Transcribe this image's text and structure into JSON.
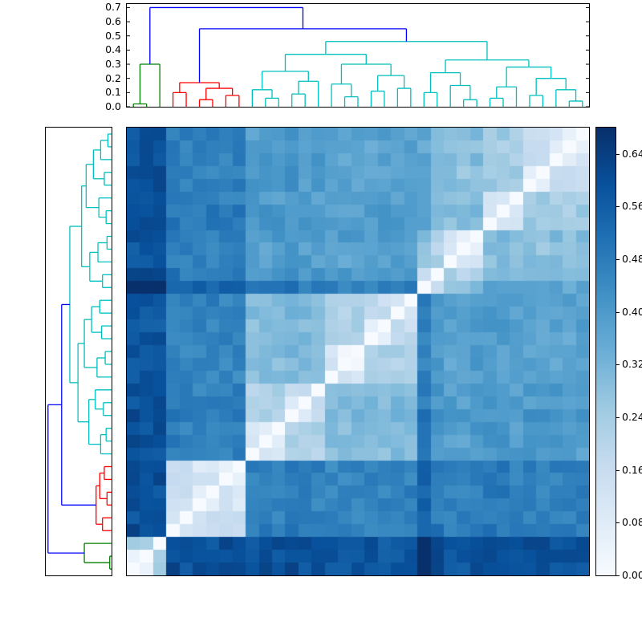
{
  "figure": {
    "background": "#ffffff",
    "description": "Hierarchically clustered pairwise distance matrix (clustermap) with column dendrogram on top, row dendrogram on the left, and a Blues colorbar on the right"
  },
  "chart_data": {
    "type": "heatmap",
    "title": "",
    "n_leaves": 35,
    "legend": "none",
    "grid": false,
    "row_order": "reversed-relative-to-columns (white zero diagonal runs bottom-left to top-right)",
    "dendrogram_axis": {
      "ylim": [
        0,
        0.725
      ],
      "tick_values": [
        0.0,
        0.1,
        0.2,
        0.3,
        0.4,
        0.5,
        0.6,
        0.7
      ],
      "tick_labels": [
        "0.0",
        "0.1",
        "0.2",
        "0.3",
        "0.4",
        "0.5",
        "0.6",
        "0.7"
      ]
    },
    "link_colors": {
      "b": "#0000ff",
      "c": "#00bfbf",
      "g": "#008000",
      "r": "#ff0000"
    },
    "tree": [
      0.7,
      "b",
      [
        0.3,
        "g",
        [
          0.02,
          "g",
          0,
          1
        ],
        2
      ],
      [
        0.55,
        "b",
        [
          0.17,
          "r",
          [
            0.1,
            "r",
            3,
            4
          ],
          [
            0.13,
            "r",
            [
              0.05,
              "r",
              5,
              6
            ],
            [
              0.08,
              "r",
              7,
              8
            ]
          ]
        ],
        [
          0.46,
          "c",
          [
            0.37,
            "c",
            [
              0.25,
              "c",
              [
                0.12,
                "c",
                9,
                [
                  0.06,
                  "c",
                  10,
                  11
                ]
              ],
              [
                0.18,
                "c",
                [
                  0.09,
                  "c",
                  12,
                  13
                ],
                14
              ]
            ],
            [
              0.3,
              "c",
              [
                0.16,
                "c",
                15,
                [
                  0.07,
                  "c",
                  16,
                  17
                ]
              ],
              [
                0.22,
                "c",
                [
                  0.11,
                  "c",
                  18,
                  19
                ],
                [
                  0.13,
                  "c",
                  20,
                  21
                ]
              ]
            ]
          ],
          [
            0.33,
            "c",
            [
              0.24,
              "c",
              [
                0.1,
                "c",
                22,
                23
              ],
              [
                0.15,
                "c",
                24,
                [
                  0.05,
                  "c",
                  25,
                  26
                ]
              ]
            ],
            [
              0.28,
              "c",
              [
                0.14,
                "c",
                [
                  0.06,
                  "c",
                  27,
                  28
                ],
                29
              ],
              [
                0.2,
                "c",
                [
                  0.08,
                  "c",
                  30,
                  31
                ],
                [
                  0.12,
                  "c",
                  32,
                  [
                    0.04,
                    "c",
                    33,
                    34
                  ]
                ]
              ]
            ]
          ]
        ]
      ]
    ],
    "heatmap": {
      "vmin": 0.0,
      "vmax": 0.68,
      "distance_cap": 0.7,
      "distance_floor": 0.015,
      "cophenetic_scale": 0.85,
      "noise_amplitude": 0.07,
      "leaf_offsets": [
        0,
        0,
        0,
        0.01,
        0,
        0,
        0,
        0,
        0,
        0,
        0,
        0,
        0.02,
        0,
        0,
        -0.015,
        -0.015,
        -0.015,
        -0.015,
        -0.015,
        -0.015,
        0,
        0.08,
        0.02,
        0,
        -0.01,
        0.015,
        0.015,
        0.015,
        0,
        0,
        0,
        0,
        -0.01,
        0
      ],
      "colormap": "Blues",
      "colormap_stops": [
        [
          0.0,
          [
            247,
            251,
            255
          ]
        ],
        [
          0.125,
          [
            222,
            235,
            247
          ]
        ],
        [
          0.25,
          [
            198,
            219,
            239
          ]
        ],
        [
          0.375,
          [
            158,
            202,
            225
          ]
        ],
        [
          0.5,
          [
            107,
            174,
            214
          ]
        ],
        [
          0.625,
          [
            66,
            146,
            198
          ]
        ],
        [
          0.75,
          [
            33,
            113,
            181
          ]
        ],
        [
          0.875,
          [
            8,
            81,
            156
          ]
        ],
        [
          1.0,
          [
            8,
            48,
            107
          ]
        ]
      ]
    },
    "colorbar": {
      "orientation": "vertical",
      "tick_values": [
        0.0,
        0.08,
        0.16,
        0.24,
        0.32,
        0.4,
        0.48,
        0.56,
        0.64
      ],
      "tick_labels": [
        "0.00",
        "0.08",
        "0.16",
        "0.24",
        "0.32",
        "0.40",
        "0.48",
        "0.56",
        "0.64"
      ]
    }
  }
}
